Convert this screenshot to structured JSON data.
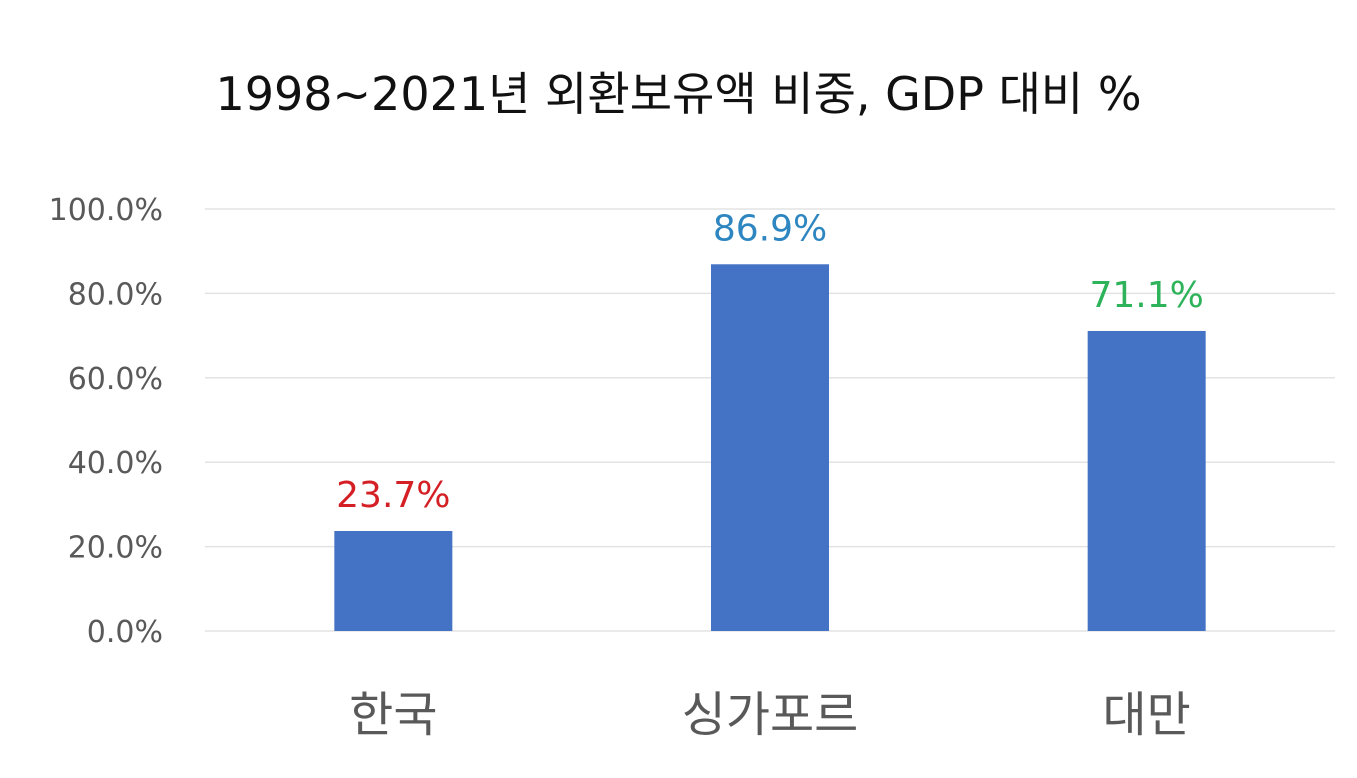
{
  "chart_data": {
    "type": "bar",
    "title": "1998~2021년 외환보유액 비중, GDP 대비 %",
    "xlabel": "",
    "ylabel": "",
    "categories": [
      "한국",
      "싱가포르",
      "대만"
    ],
    "values": [
      23.7,
      86.9,
      71.1
    ],
    "data_labels": [
      "23.7%",
      "86.9%",
      "71.1%"
    ],
    "label_colors": [
      "#d42025",
      "#2e86c1",
      "#2eb35b"
    ],
    "bar_color": "#4472c4",
    "grid_color": "#e3e3e3",
    "ylim": [
      0,
      100
    ],
    "yticks": [
      0,
      20,
      40,
      60,
      80,
      100
    ],
    "ytick_labels": [
      "0.0%",
      "20.0%",
      "40.0%",
      "60.0%",
      "80.0%",
      "100.0%"
    ],
    "grid": true,
    "legend": "none"
  }
}
